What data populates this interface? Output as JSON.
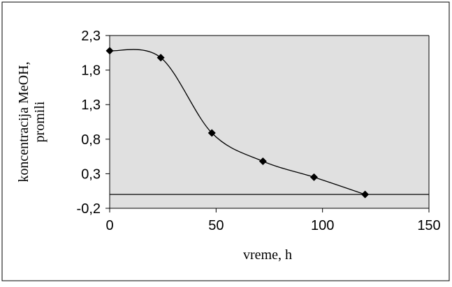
{
  "chart_data": {
    "type": "line",
    "title": "",
    "xlabel": "vreme, h",
    "ylabel_lines": [
      "koncentracija MeOH,",
      "promili"
    ],
    "x_ticks": [
      "0",
      "50",
      "100",
      "150"
    ],
    "y_ticks": [
      "-0,2",
      "0,3",
      "0,8",
      "1,3",
      "1,8",
      "2,3"
    ],
    "xlim": [
      0,
      150
    ],
    "ylim": [
      -0.2,
      2.3
    ],
    "grid": false,
    "plot_background": "#e0e0e0",
    "series": [
      {
        "x": [
          0,
          24,
          48,
          72,
          96,
          120
        ],
        "y": [
          2.08,
          1.98,
          0.89,
          0.48,
          0.25,
          0.0
        ],
        "marker": "diamond",
        "line": "smooth"
      }
    ]
  }
}
